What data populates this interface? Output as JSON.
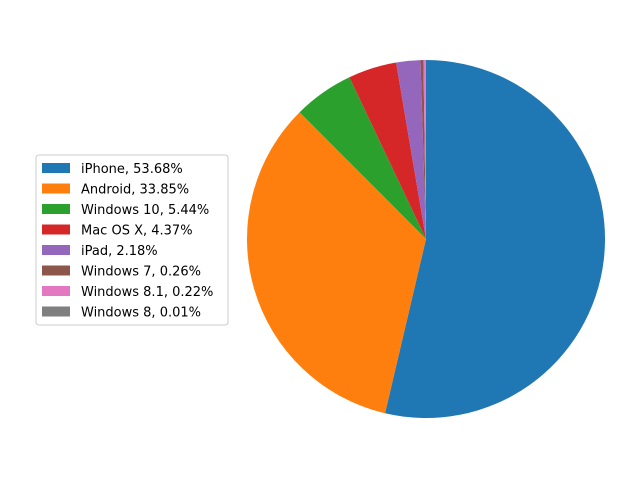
{
  "chart_data": {
    "type": "pie",
    "title": "",
    "start_angle_deg": 90,
    "direction": "clockwise",
    "legend_position": "left",
    "slices": [
      {
        "label": "iPhone, 53.68%",
        "value": 53.68,
        "color": "#1f77b4"
      },
      {
        "label": "Android, 33.85%",
        "value": 33.85,
        "color": "#ff7f0e"
      },
      {
        "label": "Windows 10, 5.44%",
        "value": 5.44,
        "color": "#2ca02c"
      },
      {
        "label": "Mac OS X, 4.37%",
        "value": 4.37,
        "color": "#d62728"
      },
      {
        "label": "iPad, 2.18%",
        "value": 2.18,
        "color": "#9467bd"
      },
      {
        "label": "Windows 7, 0.26%",
        "value": 0.26,
        "color": "#8c564b"
      },
      {
        "label": "Windows 8.1, 0.22%",
        "value": 0.22,
        "color": "#e377c2"
      },
      {
        "label": "Windows 8, 0.01%",
        "value": 0.01,
        "color": "#7f7f7f"
      }
    ]
  }
}
